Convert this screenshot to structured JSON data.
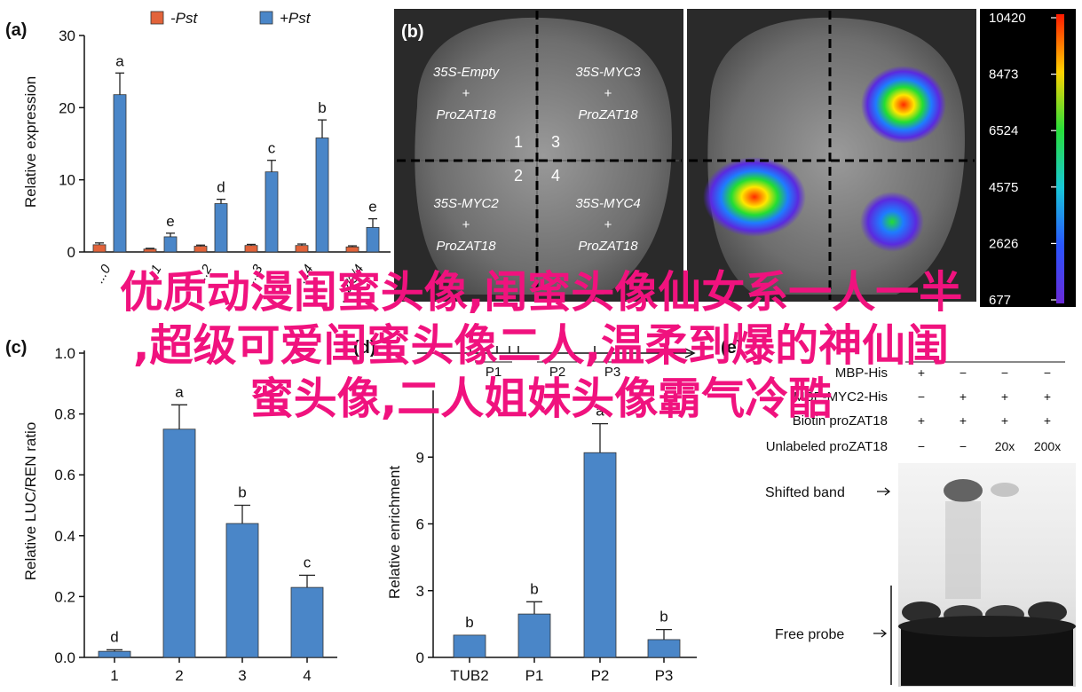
{
  "chart_data": [
    {
      "panel": "(a)",
      "type": "bar",
      "ylabel": "Relative expression",
      "ylim": [
        0,
        30
      ],
      "yticks": [
        0,
        10,
        20,
        30
      ],
      "legend": [
        "-Pst",
        "+Pst"
      ],
      "legend_placement": "top",
      "categories": [
        "0",
        "1",
        "2",
        "3",
        "4",
        "1/2/3/4"
      ],
      "category_labels": [
        "...0",
        "...1",
        "...2",
        "...3",
        "...4",
        "...2/3/4"
      ],
      "series": [
        {
          "name": "-Pst",
          "color": "#e2633a",
          "values": [
            1.0,
            0.4,
            0.8,
            0.9,
            0.9,
            0.7
          ],
          "errors": [
            0.25,
            0.1,
            0.15,
            0.15,
            0.2,
            0.15
          ]
        },
        {
          "name": "+Pst",
          "color": "#4a86c8",
          "values": [
            21.8,
            2.1,
            6.7,
            11.1,
            15.8,
            3.4
          ],
          "errors": [
            3.0,
            0.5,
            0.6,
            1.6,
            2.5,
            1.2
          ]
        }
      ],
      "sig_letters": [
        "a",
        "e",
        "d",
        "c",
        "b",
        "e"
      ]
    },
    {
      "panel": "(c)",
      "type": "bar",
      "ylabel": "Relative LUC/REN ratio",
      "ylim": [
        0,
        1.0
      ],
      "yticks": [
        "0.0",
        "0.2",
        "0.4",
        "0.6",
        "0.8",
        "1.0"
      ],
      "categories": [
        "1",
        "2",
        "3",
        "4"
      ],
      "values": [
        0.02,
        0.75,
        0.44,
        0.23
      ],
      "errors": [
        0.005,
        0.08,
        0.06,
        0.04
      ],
      "sig_letters": [
        "d",
        "a",
        "b",
        "c"
      ],
      "color": "#4a86c8"
    },
    {
      "panel": "(d)",
      "type": "bar",
      "ylabel": "Relative enrichment",
      "ylim": [
        0,
        12
      ],
      "yticks": [
        "0",
        "3",
        "6",
        "9"
      ],
      "categories": [
        "TUB2",
        "P1",
        "P2",
        "P3"
      ],
      "values": [
        1.0,
        1.95,
        9.2,
        0.8
      ],
      "errors": [
        0.0,
        0.55,
        1.3,
        0.45
      ],
      "sig_letters": [
        "b",
        "b",
        "a",
        "b"
      ],
      "color": "#4a86c8",
      "promoter_labels": [
        "P1",
        "P2",
        "P3"
      ]
    }
  ],
  "panel_b": {
    "label": "(b)",
    "quadrants": [
      {
        "line1": "35S-Empty",
        "line2": "+",
        "line3": "ProZAT18"
      },
      {
        "line1": "35S-MYC3",
        "line2": "+",
        "line3": "ProZAT18"
      },
      {
        "line1": "35S-MYC2",
        "line2": "+",
        "line3": "ProZAT18"
      },
      {
        "line1": "35S-MYC4",
        "line2": "+",
        "line3": "ProZAT18"
      }
    ],
    "numbers": [
      "1",
      "3",
      "2",
      "4"
    ],
    "colorbar_ticks": [
      "10420",
      "8473",
      "6524",
      "4575",
      "2626",
      "677"
    ]
  },
  "panel_e": {
    "label": "(e)",
    "rows": [
      {
        "label": "MBP-His",
        "cells": [
          "+",
          "−",
          "−",
          "−"
        ]
      },
      {
        "label": "MBP-MYC2-His",
        "cells": [
          "−",
          "+",
          "+",
          "+"
        ]
      },
      {
        "label": "Biotin proZAT18",
        "cells": [
          "+",
          "+",
          "+",
          "+"
        ]
      },
      {
        "label": "Unlabeled proZAT18",
        "cells": [
          "−",
          "−",
          "20x",
          "200x"
        ]
      }
    ],
    "shifted_band": "Shifted band",
    "free_probe": "Free probe"
  },
  "overlay": {
    "line1": "优质动漫闺蜜头像,闺蜜头像仙女系一人一半",
    "line2": ",超级可爱闺蜜头像二人,温柔到爆的神仙闺",
    "line3": "蜜头像,二人姐妹头像霸气冷酷",
    "color": "#f0127e"
  }
}
